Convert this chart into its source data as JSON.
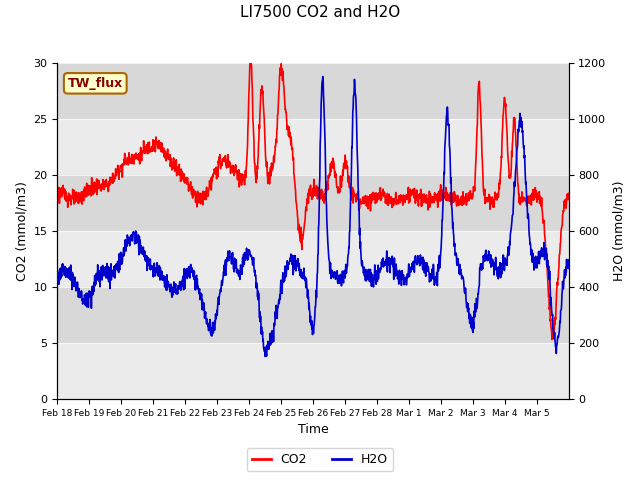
{
  "title": "LI7500 CO2 and H2O",
  "xlabel": "Time",
  "ylabel_left": "CO2 (mmol/m3)",
  "ylabel_right": "H2O (mmol/m3)",
  "ylim_left": [
    0,
    30
  ],
  "ylim_right": [
    0,
    1200
  ],
  "yticks_left": [
    0,
    5,
    10,
    15,
    20,
    25,
    30
  ],
  "yticks_right": [
    0,
    200,
    400,
    600,
    800,
    1000,
    1200
  ],
  "xtick_labels": [
    "Feb 18",
    "Feb 19",
    "Feb 20",
    "Feb 21",
    "Feb 22",
    "Feb 23",
    "Feb 24",
    "Feb 25",
    "Feb 26",
    "Feb 27",
    "Feb 28",
    "Mar 1",
    "Mar 2",
    "Mar 3",
    "Mar 4",
    "Mar 5"
  ],
  "co2_color": "#ff0000",
  "h2o_color": "#0000cc",
  "figure_bg": "#ffffff",
  "plot_bg_light": "#ebebeb",
  "plot_bg_dark": "#d8d8d8",
  "legend_co2": "CO2",
  "legend_h2o": "H2O",
  "annotation_text": "TW_flux",
  "annotation_bg": "#ffffcc",
  "annotation_border": "#aa6600",
  "annotation_text_color": "#880000",
  "title_fontsize": 11,
  "axis_label_fontsize": 9,
  "tick_fontsize": 8,
  "legend_fontsize": 9,
  "line_width": 1.2
}
